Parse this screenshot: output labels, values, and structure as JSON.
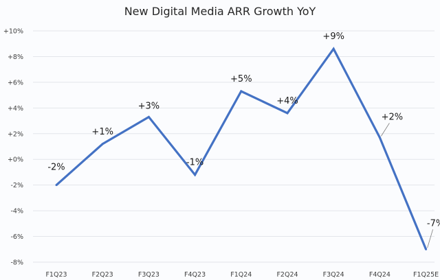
{
  "chart_data": {
    "type": "line",
    "title": "New Digital Media ARR Growth YoY",
    "xlabel": "",
    "ylabel": "",
    "categories": [
      "F1Q23",
      "F2Q23",
      "F3Q23",
      "F4Q23",
      "F1Q24",
      "F2Q24",
      "F3Q24",
      "F4Q24",
      "F1Q25E"
    ],
    "series": [
      {
        "name": "New Digital Media ARR Growth YoY",
        "values": [
          -2.0,
          1.2,
          3.3,
          -1.2,
          5.3,
          3.6,
          8.6,
          1.7,
          -7.0
        ],
        "data_labels": [
          "-2%",
          "+1%",
          "+3%",
          "-1%",
          "+5%",
          "+4%",
          "+9%",
          "+2%",
          "-7%"
        ],
        "color": "#4472c4"
      }
    ],
    "ylim": [
      -8,
      10
    ],
    "yticks": [
      10,
      8,
      6,
      4,
      2,
      0,
      -2,
      -4,
      -6,
      -8
    ],
    "ytick_labels": [
      "+10%",
      "+8%",
      "+6%",
      "+4%",
      "+2%",
      "+0%",
      "-2%",
      "-4%",
      "-6%",
      "-8%"
    ],
    "grid": true,
    "legend": "none"
  }
}
